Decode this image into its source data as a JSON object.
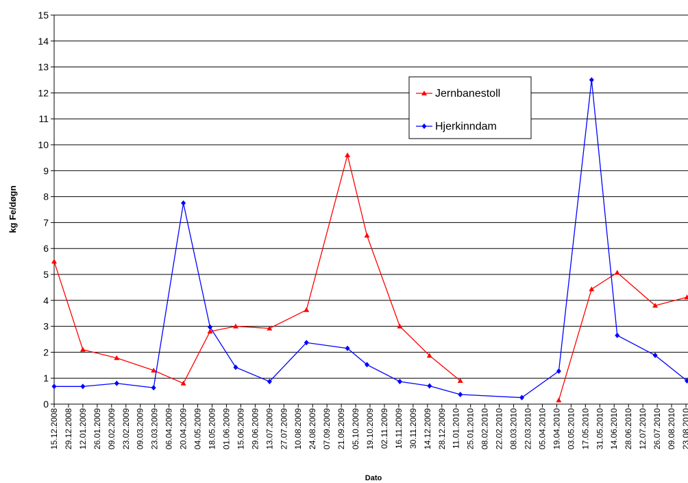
{
  "chart_data": {
    "type": "line",
    "x_label": "Dato",
    "y_label": "kg Fe/døgn",
    "x": [
      "15.12.2008",
      "12.01.2009",
      "14.02.2009",
      "22.03.2009",
      "20.04.2009",
      "16.05.2009",
      "10.06.2009",
      "13.07.2009",
      "18.08.2009",
      "27.09.2009",
      "16.10.2009",
      "17.11.2009",
      "16.12.2009",
      "15.01.2010",
      "16.03.2010",
      "21.04.2010",
      "23.05.2010",
      "17.06.2010",
      "24.07.2010",
      "24.08.2010"
    ],
    "series": [
      {
        "name": "Jernbanestoll",
        "color": "#ff0000",
        "marker": "triangle",
        "values": [
          5.5,
          2.1,
          1.78,
          1.3,
          0.8,
          2.8,
          3.0,
          2.92,
          3.63,
          9.6,
          6.5,
          3.0,
          1.87,
          0.9,
          null,
          0.15,
          4.43,
          5.07,
          3.8,
          4.12
        ]
      },
      {
        "name": "Hjerkinndam",
        "color": "#0000ff",
        "marker": "diamond",
        "values": [
          0.68,
          0.68,
          0.8,
          0.63,
          7.75,
          2.97,
          1.42,
          0.87,
          2.37,
          2.15,
          1.52,
          0.87,
          0.7,
          0.37,
          0.25,
          1.27,
          12.5,
          2.65,
          1.88,
          0.9
        ]
      }
    ],
    "xlim": [
      "15.12.2008",
      "25.08.2010"
    ],
    "xticks": [
      "15.12.2008",
      "29.12.2008",
      "12.01.2009",
      "26.01.2009",
      "09.02.2009",
      "23.02.2009",
      "09.03.2009",
      "23.03.2009",
      "06.04.2009",
      "20.04.2009",
      "04.05.2009",
      "18.05.2009",
      "01.06.2009",
      "15.06.2009",
      "29.06.2009",
      "13.07.2009",
      "27.07.2009",
      "10.08.2009",
      "24.08.2009",
      "07.09.2009",
      "21.09.2009",
      "05.10.2009",
      "19.10.2009",
      "02.11.2009",
      "16.11.2009",
      "30.11.2009",
      "14.12.2009",
      "28.12.2009",
      "11.01.2010",
      "25.01.2010",
      "08.02.2010",
      "22.02.2010",
      "08.03.2010",
      "22.03.2010",
      "05.04.2010",
      "19.04.2010",
      "03.05.2010",
      "17.05.2010",
      "31.05.2010",
      "14.06.2010",
      "28.06.2010",
      "12.07.2010",
      "26.07.2010",
      "09.08.2010",
      "23.08.2010"
    ],
    "ylim": [
      0,
      15
    ],
    "yticks": [
      0,
      1,
      2,
      3,
      4,
      5,
      6,
      7,
      8,
      9,
      10,
      11,
      12,
      13,
      14,
      15
    ],
    "grid": true,
    "legend_position": "upper-right"
  }
}
